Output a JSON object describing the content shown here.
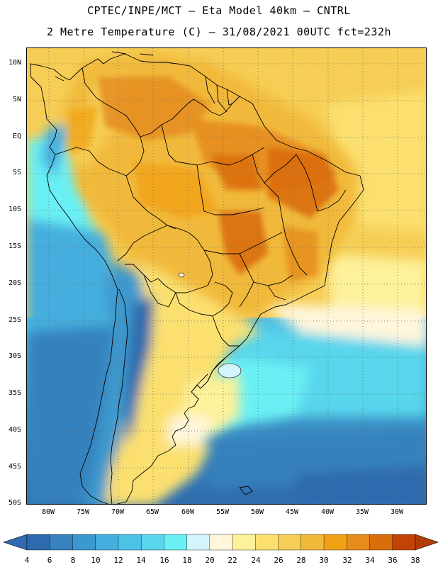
{
  "title": {
    "line1": "CPTEC/INPE/MCT –  Eta Model 40km – CNTRL",
    "line2": "2 Metre Temperature (C) – 31/08/2021 00UTC fct=232h"
  },
  "map": {
    "lat_labels": [
      "10N",
      "5N",
      "EQ",
      "5S",
      "10S",
      "15S",
      "20S",
      "25S",
      "30S",
      "35S",
      "40S",
      "45S",
      "50S"
    ],
    "lon_labels": [
      "80W",
      "75W",
      "70W",
      "65W",
      "60W",
      "55W",
      "50W",
      "45W",
      "40W",
      "35W",
      "30W"
    ]
  },
  "colorbar": {
    "labels": [
      "4",
      "6",
      "8",
      "10",
      "12",
      "14",
      "16",
      "18",
      "20",
      "22",
      "24",
      "26",
      "28",
      "30",
      "32",
      "34",
      "36",
      "38"
    ],
    "colors": [
      "#2e6aad",
      "#3681be",
      "#3c99cd",
      "#45aede",
      "#4cc2e6",
      "#58d6ec",
      "#6af0f4",
      "#d4f4fb",
      "#fff6dc",
      "#fdf19a",
      "#fbe06f",
      "#f6ce55",
      "#f1b93a",
      "#f1a214",
      "#e58c1c",
      "#da6d0c",
      "#c44304"
    ],
    "left_arrow_color": "#2f6bb1",
    "right_arrow_color": "#b23c08"
  }
}
